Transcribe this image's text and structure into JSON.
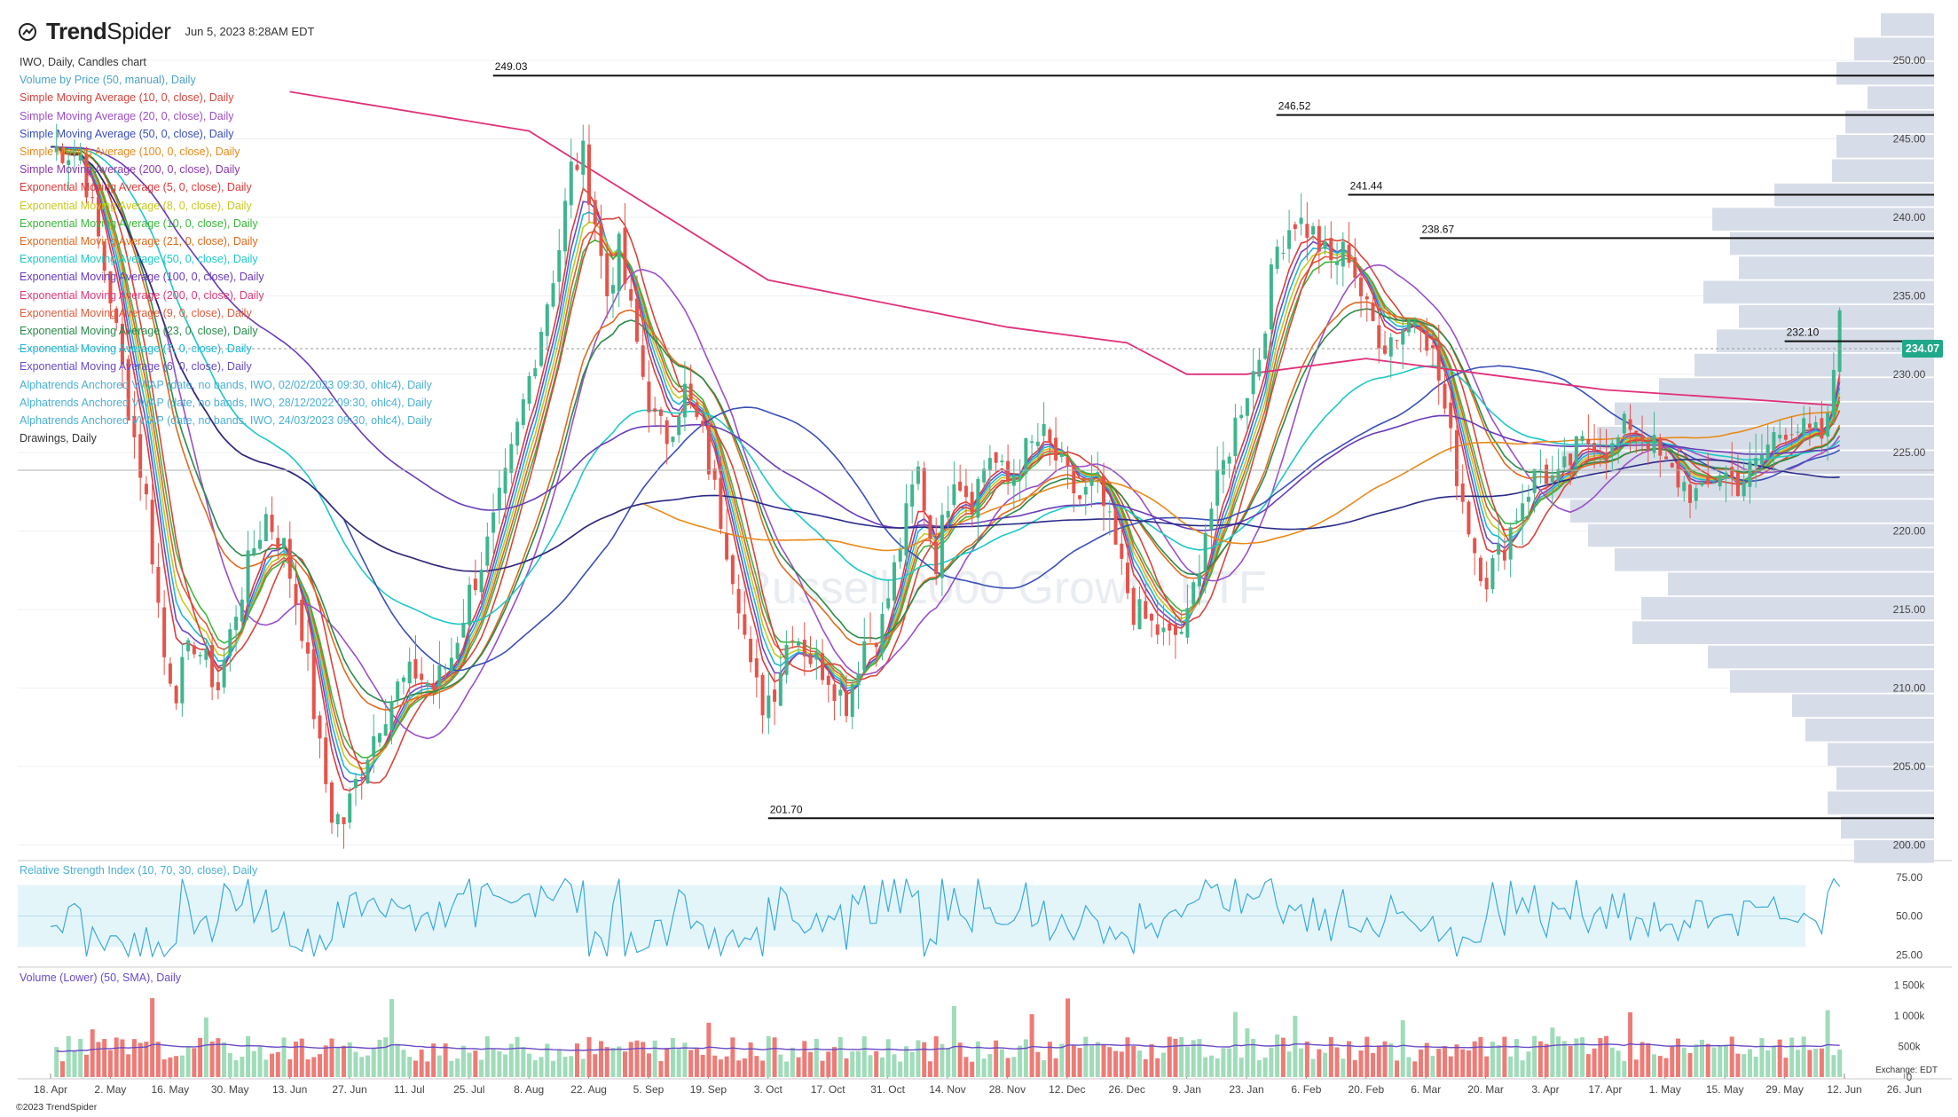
{
  "header": {
    "brand_bold": "Trend",
    "brand_thin": "Spider",
    "date": "Jun 5, 2023 8:28AM EDT"
  },
  "watermark": "Russell 2000 Growth ETF",
  "legend": [
    {
      "text": "IWO, Daily, Candles chart",
      "color": "#333333"
    },
    {
      "text": "Volume by Price (50, manual), Daily",
      "color": "#4aa3c9"
    },
    {
      "text": "Simple Moving Average (10, 0, close), Daily",
      "color": "#d9443c"
    },
    {
      "text": "Simple Moving Average (20, 0, close), Daily",
      "color": "#9b4fc9"
    },
    {
      "text": "Simple Moving Average (50, 0, close), Daily",
      "color": "#3a4fb8"
    },
    {
      "text": "Simple Moving Average (100, 0, close), Daily",
      "color": "#e88a1a"
    },
    {
      "text": "Simple Moving Average (200, 0, close), Daily",
      "color": "#8a3ab0"
    },
    {
      "text": "Exponential Moving Average (5, 0, close), Daily",
      "color": "#e03a3a"
    },
    {
      "text": "Exponential Moving Average (8, 0, close), Daily",
      "color": "#c8c81e"
    },
    {
      "text": "Exponential Moving Average (10, 0, close), Daily",
      "color": "#3ab83a"
    },
    {
      "text": "Exponential Moving Average (21, 0, close), Daily",
      "color": "#e06a1e"
    },
    {
      "text": "Exponential Moving Average (50, 0, close), Daily",
      "color": "#1ec8c8"
    },
    {
      "text": "Exponential Moving Average (100, 0, close), Daily",
      "color": "#6a3ab8"
    },
    {
      "text": "Exponential Moving Average (200, 0, close), Daily",
      "color": "#e03a7a"
    },
    {
      "text": "Exponential Moving Average (9, 0, close), Daily",
      "color": "#e05a3a"
    },
    {
      "text": "Exponential Moving Average (23, 0, close), Daily",
      "color": "#2a8a4a"
    },
    {
      "text": "Exponential Moving Average (7, 0, close), Daily",
      "color": "#1ab8d8"
    },
    {
      "text": "Exponential Moving Average (6, 0, close), Daily",
      "color": "#6a4ac8"
    },
    {
      "text": "Alphatrends Anchored VWAP (date, no bands, IWO, 02/02/2023 09:30, ohlc4), Daily",
      "color": "#4ab0d8"
    },
    {
      "text": "Alphatrends Anchored VWAP (date, no bands, IWO, 28/12/2022 09:30, ohlc4), Daily",
      "color": "#4ab0d8"
    },
    {
      "text": "Alphatrends Anchored VWAP (date, no bands, IWO, 24/03/2023 09:30, ohlc4), Daily",
      "color": "#4ab0d8"
    },
    {
      "text": "Drawings, Daily",
      "color": "#333333"
    }
  ],
  "rsi_title": "Relative Strength Index (10, 70, 30, close), Daily",
  "volume_title": "Volume (Lower) (50, SMA), Daily",
  "last_price": "234.07",
  "exchange": "Exchange: EDT",
  "copyright": "©2023 TrendSpider",
  "colors": {
    "up": "#3fb58e",
    "down": "#e5534b",
    "vol_up": "#9fdcb9",
    "vol_down": "#ee7b76"
  },
  "chart_data": {
    "type": "candlestick",
    "ylim": [
      199,
      253
    ],
    "price_ticks": [
      "250.00",
      "245.00",
      "240.00",
      "235.00",
      "230.00",
      "225.00",
      "220.00",
      "215.00",
      "210.00",
      "205.00",
      "200.00"
    ],
    "x_ticks": [
      "18. Apr",
      "2. May",
      "16. May",
      "30. May",
      "13. Jun",
      "27. Jun",
      "11. Jul",
      "25. Jul",
      "8. Aug",
      "22. Aug",
      "5. Sep",
      "19. Sep",
      "3. Oct",
      "17. Oct",
      "31. Oct",
      "14. Nov",
      "28. Nov",
      "12. Dec",
      "26. Dec",
      "9. Jan",
      "23. Jan",
      "6. Feb",
      "20. Feb",
      "6. Mar",
      "20. Mar",
      "3. Apr",
      "17. Apr",
      "1. May",
      "15. May",
      "29. May",
      "12. Jun",
      "26. Jun"
    ],
    "levels": [
      {
        "label": "249.03",
        "value": 249.03,
        "from_tick": 7.4
      },
      {
        "label": "246.52",
        "value": 246.52,
        "from_tick": 20.5
      },
      {
        "label": "241.44",
        "value": 241.44,
        "from_tick": 21.7
      },
      {
        "label": "238.67",
        "value": 238.67,
        "from_tick": 22.9
      },
      {
        "label": "232.10",
        "value": 232.1,
        "from_tick": 29.0
      },
      {
        "label": "201.70",
        "value": 201.7,
        "from_tick": 12.0
      }
    ],
    "close_path": [
      [
        0,
        244.5
      ],
      [
        0.5,
        244
      ],
      [
        1,
        235
      ],
      [
        1.3,
        228
      ],
      [
        1.6,
        222
      ],
      [
        1.9,
        212
      ],
      [
        2.1,
        210
      ],
      [
        2.4,
        213
      ],
      [
        2.8,
        210
      ],
      [
        3.1,
        215
      ],
      [
        3.4,
        219
      ],
      [
        3.6,
        221
      ],
      [
        3.9,
        219
      ],
      [
        4.2,
        214
      ],
      [
        4.5,
        206
      ],
      [
        4.7,
        202
      ],
      [
        4.9,
        201.5
      ],
      [
        5.2,
        205
      ],
      [
        5.5,
        208
      ],
      [
        5.8,
        210
      ],
      [
        6.1,
        211
      ],
      [
        6.4,
        210
      ],
      [
        6.7,
        212
      ],
      [
        7.0,
        216
      ],
      [
        7.3,
        219
      ],
      [
        7.6,
        223
      ],
      [
        7.9,
        228
      ],
      [
        8.2,
        233
      ],
      [
        8.5,
        238
      ],
      [
        8.7,
        243
      ],
      [
        8.9,
        244
      ],
      [
        9.1,
        240
      ],
      [
        9.3,
        235
      ],
      [
        9.5,
        238
      ],
      [
        9.7,
        234
      ],
      [
        9.9,
        230
      ],
      [
        10.1,
        227
      ],
      [
        10.3,
        226
      ],
      [
        10.6,
        229
      ],
      [
        10.9,
        226
      ],
      [
        11.2,
        221
      ],
      [
        11.5,
        216
      ],
      [
        11.7,
        211
      ],
      [
        11.9,
        209
      ],
      [
        12.1,
        210
      ],
      [
        12.4,
        214
      ],
      [
        12.7,
        212
      ],
      [
        13.0,
        211
      ],
      [
        13.3,
        209
      ],
      [
        13.6,
        213
      ],
      [
        13.9,
        214
      ],
      [
        14.2,
        219
      ],
      [
        14.5,
        224
      ],
      [
        14.8,
        218
      ],
      [
        15.1,
        224
      ],
      [
        15.4,
        222
      ],
      [
        15.7,
        225
      ],
      [
        16.0,
        223
      ],
      [
        16.3,
        225
      ],
      [
        16.6,
        226
      ],
      [
        16.9,
        224
      ],
      [
        17.2,
        222
      ],
      [
        17.5,
        223
      ],
      [
        17.8,
        219
      ],
      [
        18.1,
        215
      ],
      [
        18.4,
        214
      ],
      [
        18.7,
        213
      ],
      [
        19.0,
        214
      ],
      [
        19.3,
        220
      ],
      [
        19.6,
        224
      ],
      [
        19.9,
        228
      ],
      [
        20.2,
        231
      ],
      [
        20.5,
        238
      ],
      [
        20.8,
        240
      ],
      [
        21.1,
        239
      ],
      [
        21.4,
        237
      ],
      [
        21.7,
        238
      ],
      [
        22.0,
        234
      ],
      [
        22.3,
        232
      ],
      [
        22.6,
        233
      ],
      [
        22.9,
        234
      ],
      [
        23.2,
        230
      ],
      [
        23.5,
        224
      ],
      [
        23.8,
        219
      ],
      [
        24.0,
        217
      ],
      [
        24.3,
        219
      ],
      [
        24.6,
        222
      ],
      [
        24.9,
        224
      ],
      [
        25.2,
        223
      ],
      [
        25.5,
        225
      ],
      [
        25.8,
        226
      ],
      [
        26.1,
        225
      ],
      [
        26.4,
        227
      ],
      [
        26.7,
        226
      ],
      [
        27.0,
        224
      ],
      [
        27.3,
        223
      ],
      [
        27.6,
        222
      ],
      [
        27.9,
        224
      ],
      [
        28.2,
        223
      ],
      [
        28.5,
        224
      ],
      [
        28.8,
        226
      ],
      [
        29.1,
        227
      ],
      [
        29.4,
        226
      ],
      [
        29.7,
        226
      ],
      [
        29.92,
        234.07
      ]
    ],
    "ema200_path": [
      [
        4,
        248
      ],
      [
        8,
        245.5
      ],
      [
        12,
        236
      ],
      [
        16,
        233
      ],
      [
        18,
        232
      ],
      [
        19,
        230
      ],
      [
        20,
        230
      ],
      [
        22,
        231
      ],
      [
        24,
        230
      ],
      [
        26,
        229
      ],
      [
        28,
        228.5
      ],
      [
        29.9,
        228
      ]
    ],
    "rsi": {
      "ylim": [
        20,
        80
      ],
      "ticks": [
        "75.00",
        "50.00",
        "25.00"
      ],
      "band": [
        30,
        70
      ]
    },
    "volume": {
      "ticks": [
        "1 500k",
        "1 000k",
        "500k",
        "0"
      ]
    }
  }
}
